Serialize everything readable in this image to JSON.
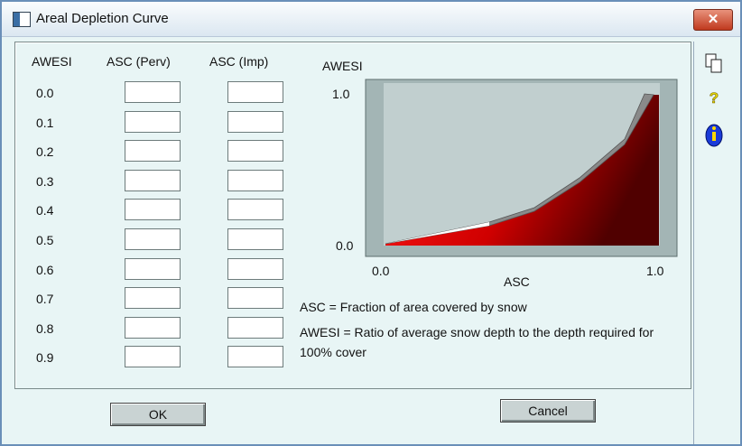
{
  "window": {
    "title": "Areal Depletion Curve"
  },
  "table": {
    "headers": [
      "AWESI",
      "ASC (Perv)",
      "ASC (Imp)"
    ],
    "rows": [
      "0.0",
      "0.1",
      "0.2",
      "0.3",
      "0.4",
      "0.5",
      "0.6",
      "0.7",
      "0.8",
      "0.9"
    ]
  },
  "diagram": {
    "y_axis_label": "AWESI",
    "y_max": "1.0",
    "y_min": "0.0",
    "x_min": "0.0",
    "x_max": "1.0",
    "x_axis_label": "ASC"
  },
  "notes": [
    "ASC = Fraction of area covered by snow",
    "AWESI = Ratio of average snow depth to the depth required for 100% cover"
  ],
  "buttons": {
    "ok": "OK",
    "cancel": "Cancel"
  }
}
